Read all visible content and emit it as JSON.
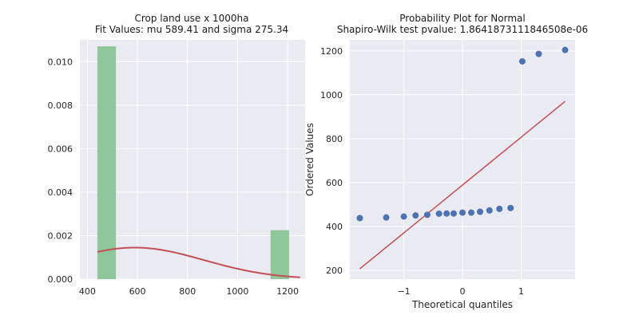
{
  "colors": {
    "axes_bg": "#eaeaf2",
    "grid": "#ffffff",
    "hist_bar": "#8fc79b",
    "fit_curve": "#c44e52",
    "points": "#4c72b0",
    "ref_line": "#c44e52"
  },
  "chart_data": [
    {
      "type": "bar",
      "title_line1": "Crop land use x 1000ha",
      "title_line2": "Fit Values: mu 589.41 and sigma 275.34",
      "xlabel": "",
      "ylabel": "",
      "xlim": [
        370,
        1270
      ],
      "ylim": [
        0,
        0.011
      ],
      "xticks": [
        400,
        600,
        800,
        1000,
        1200
      ],
      "xtick_labels": [
        "400",
        "600",
        "800",
        "1000",
        "1200"
      ],
      "yticks": [
        0,
        0.002,
        0.004,
        0.006,
        0.008,
        0.01
      ],
      "ytick_labels": [
        "0.000",
        "0.002",
        "0.004",
        "0.006",
        "0.008",
        "0.010"
      ],
      "grid": true,
      "bars": [
        {
          "x0": 440,
          "x1": 514,
          "value": 0.0107
        },
        {
          "x0": 1132,
          "x1": 1206,
          "value": 0.00225
        }
      ],
      "fit": {
        "mu": 589.41,
        "sigma": 275.34,
        "x_range": [
          440,
          1250
        ]
      }
    },
    {
      "type": "scatter",
      "title_line1": "Probability Plot for Normal",
      "title_line2": "Shapiro-Wilk test pvalue: 1.8641873111846508e-06",
      "xlabel": "Theoretical quantiles",
      "ylabel": "Ordered Values",
      "xlim": [
        -1.92,
        1.92
      ],
      "ylim": [
        160,
        1250
      ],
      "xticks": [
        -1,
        0,
        1
      ],
      "xtick_labels": [
        "−1",
        "0",
        "1"
      ],
      "yticks": [
        200,
        400,
        600,
        800,
        1000,
        1200
      ],
      "ytick_labels": [
        "200",
        "400",
        "600",
        "800",
        "1000",
        "1200"
      ],
      "grid": true,
      "points": [
        {
          "x": -1.75,
          "y": 438
        },
        {
          "x": -1.3,
          "y": 441
        },
        {
          "x": -1.0,
          "y": 445
        },
        {
          "x": -0.8,
          "y": 450
        },
        {
          "x": -0.6,
          "y": 453
        },
        {
          "x": -0.4,
          "y": 458
        },
        {
          "x": -0.27,
          "y": 459
        },
        {
          "x": -0.15,
          "y": 459
        },
        {
          "x": 0.0,
          "y": 463
        },
        {
          "x": 0.15,
          "y": 463
        },
        {
          "x": 0.3,
          "y": 467
        },
        {
          "x": 0.46,
          "y": 473
        },
        {
          "x": 0.63,
          "y": 480
        },
        {
          "x": 0.82,
          "y": 484
        },
        {
          "x": 1.02,
          "y": 1152
        },
        {
          "x": 1.3,
          "y": 1186
        },
        {
          "x": 1.75,
          "y": 1204
        }
      ],
      "fit_line": {
        "x": [
          -1.75,
          1.75
        ],
        "y": [
          207,
          970
        ]
      }
    }
  ]
}
